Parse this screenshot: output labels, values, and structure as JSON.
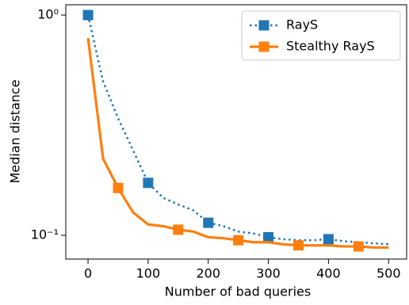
{
  "chart_data": {
    "type": "line",
    "xlabel": "Number of bad queries",
    "ylabel": "Median distance",
    "x": [
      0,
      25,
      50,
      75,
      100,
      125,
      150,
      175,
      200,
      225,
      250,
      275,
      300,
      325,
      350,
      375,
      400,
      425,
      450,
      475,
      500
    ],
    "series": [
      {
        "name": "RayS",
        "color": "#1f77b4",
        "linestyle": "dotted",
        "markevery": [
          0,
          4,
          8,
          12,
          16
        ],
        "values": [
          1.0,
          0.5,
          0.34,
          0.243,
          0.173,
          0.148,
          0.138,
          0.13,
          0.114,
          0.11,
          0.104,
          0.102,
          0.098,
          0.096,
          0.095,
          0.095,
          0.096,
          0.094,
          0.093,
          0.092,
          0.091
        ]
      },
      {
        "name": "Stealthy RayS",
        "color": "#ff7f0e",
        "linestyle": "solid",
        "markevery": [
          2,
          6,
          10,
          14,
          18
        ],
        "values": [
          0.786,
          0.223,
          0.164,
          0.127,
          0.112,
          0.11,
          0.106,
          0.104,
          0.098,
          0.097,
          0.095,
          0.093,
          0.093,
          0.091,
          0.09,
          0.09,
          0.09,
          0.089,
          0.089,
          0.088,
          0.088
        ]
      }
    ],
    "xlim": [
      -37,
      530
    ],
    "xticks": [
      0,
      100,
      200,
      300,
      400,
      500
    ],
    "ylim": [
      0.078,
      1.114
    ],
    "yscale": "log",
    "yticks": [
      {
        "value": 0.1,
        "label": "10⁻¹"
      },
      {
        "value": 1,
        "label": "10⁰"
      }
    ],
    "legend": "upper right"
  }
}
